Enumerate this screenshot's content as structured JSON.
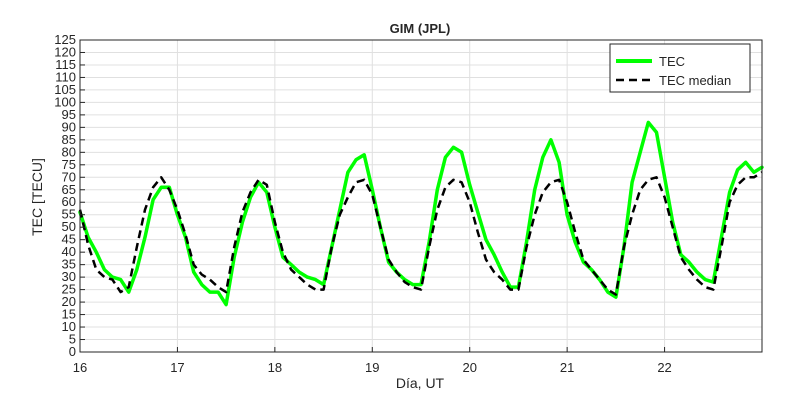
{
  "chart_data": {
    "type": "line",
    "title": "GIM (JPL)",
    "xlabel": "Día, UT",
    "ylabel": "TEC [TECU]",
    "xlim": [
      16,
      23
    ],
    "ylim": [
      0,
      125
    ],
    "xticks": [
      "16",
      "17",
      "18",
      "19",
      "20",
      "21",
      "22"
    ],
    "yticks": [
      "0",
      "5",
      "10",
      "15",
      "20",
      "25",
      "30",
      "35",
      "40",
      "45",
      "50",
      "55",
      "60",
      "65",
      "70",
      "75",
      "80",
      "85",
      "90",
      "95",
      "100",
      "105",
      "110",
      "115",
      "120",
      "125"
    ],
    "grid": true,
    "legend_position": "top-right",
    "series": [
      {
        "name": "TEC",
        "color": "#00ff00",
        "style": "solid",
        "x": [
          16.0,
          16.083,
          16.167,
          16.25,
          16.333,
          16.417,
          16.5,
          16.583,
          16.667,
          16.75,
          16.833,
          16.917,
          17.0,
          17.083,
          17.167,
          17.25,
          17.333,
          17.417,
          17.5,
          17.583,
          17.667,
          17.75,
          17.833,
          17.917,
          18.0,
          18.083,
          18.167,
          18.25,
          18.333,
          18.417,
          18.5,
          18.583,
          18.667,
          18.75,
          18.833,
          18.917,
          19.0,
          19.083,
          19.167,
          19.25,
          19.333,
          19.417,
          19.5,
          19.583,
          19.667,
          19.75,
          19.833,
          19.917,
          20.0,
          20.083,
          20.167,
          20.25,
          20.333,
          20.417,
          20.5,
          20.583,
          20.667,
          20.75,
          20.833,
          20.917,
          21.0,
          21.083,
          21.167,
          21.25,
          21.333,
          21.417,
          21.5,
          21.583,
          21.667,
          21.75,
          21.833,
          21.917,
          22.0,
          22.083,
          22.167,
          22.25,
          22.333,
          22.417,
          22.5,
          22.583,
          22.667,
          22.75,
          22.833,
          22.917,
          23.0
        ],
        "values": [
          56,
          46,
          40,
          33,
          30,
          29,
          24,
          33,
          46,
          61,
          66,
          66,
          55,
          46,
          32,
          27,
          24,
          24,
          19,
          38,
          52,
          62,
          68,
          64,
          50,
          38,
          35,
          32,
          30,
          29,
          27,
          42,
          57,
          72,
          77,
          79,
          65,
          50,
          36,
          32,
          29,
          27,
          27,
          44,
          65,
          78,
          82,
          80,
          67,
          56,
          45,
          39,
          32,
          26,
          26,
          44,
          65,
          78,
          85,
          76,
          55,
          44,
          36,
          33,
          29,
          24,
          22,
          42,
          68,
          80,
          92,
          88,
          70,
          52,
          39,
          36,
          32,
          29,
          28,
          46,
          64,
          73,
          76,
          72,
          74
        ]
      },
      {
        "name": "TEC median",
        "color": "#000000",
        "style": "dashed",
        "x": [
          16.0,
          16.083,
          16.167,
          16.25,
          16.333,
          16.417,
          16.5,
          16.583,
          16.667,
          16.75,
          16.833,
          16.917,
          17.0,
          17.083,
          17.167,
          17.25,
          17.333,
          17.417,
          17.5,
          17.583,
          17.667,
          17.75,
          17.833,
          17.917,
          18.0,
          18.083,
          18.167,
          18.25,
          18.333,
          18.417,
          18.5,
          18.583,
          18.667,
          18.75,
          18.833,
          18.917,
          19.0,
          19.083,
          19.167,
          19.25,
          19.333,
          19.417,
          19.5,
          19.583,
          19.667,
          19.75,
          19.833,
          19.917,
          20.0,
          20.083,
          20.167,
          20.25,
          20.333,
          20.417,
          20.5,
          20.583,
          20.667,
          20.75,
          20.833,
          20.917,
          21.0,
          21.083,
          21.167,
          21.25,
          21.333,
          21.417,
          21.5,
          21.583,
          21.667,
          21.75,
          21.833,
          21.917,
          22.0,
          22.083,
          22.167,
          22.25,
          22.333,
          22.417,
          22.5,
          22.583,
          22.667,
          22.75,
          22.833,
          22.917,
          23.0
        ],
        "values": [
          57,
          43,
          33,
          30,
          29,
          24,
          26,
          42,
          57,
          66,
          70,
          65,
          57,
          47,
          35,
          31,
          29,
          26,
          24,
          42,
          56,
          64,
          69,
          67,
          52,
          40,
          33,
          30,
          27,
          25,
          25,
          42,
          55,
          62,
          68,
          69,
          63,
          50,
          37,
          32,
          28,
          26,
          25,
          42,
          57,
          66,
          69,
          68,
          60,
          48,
          37,
          32,
          29,
          25,
          25,
          42,
          55,
          64,
          68,
          69,
          60,
          48,
          37,
          33,
          29,
          25,
          23,
          42,
          55,
          65,
          69,
          70,
          62,
          50,
          38,
          33,
          29,
          26,
          25,
          42,
          60,
          67,
          70,
          70,
          72
        ]
      }
    ]
  }
}
